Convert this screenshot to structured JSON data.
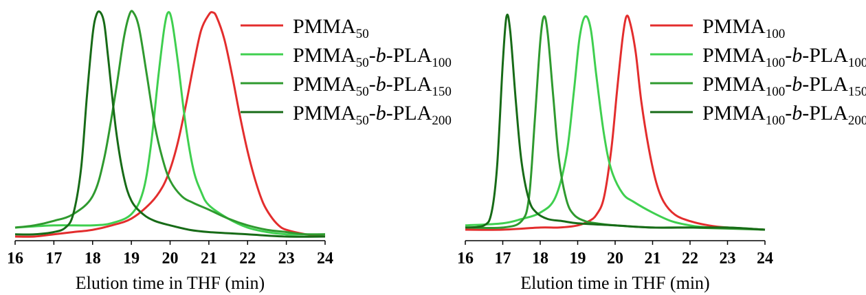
{
  "chart_data": [
    {
      "type": "line",
      "xlabel": "Elution time in THF (min)",
      "ylabel": "",
      "xlim": [
        16,
        24
      ],
      "ylim": [
        0,
        1
      ],
      "x_ticks": [
        "16",
        "17",
        "18",
        "19",
        "20",
        "21",
        "22",
        "23",
        "24"
      ],
      "grid": false,
      "legend_position": "top-right",
      "series": [
        {
          "name": "PMMA50",
          "name_parts": [
            [
              "PMMA",
              ""
            ],
            [
              "50",
              "sub"
            ]
          ],
          "color": "#e32d2d",
          "x": [
            16.0,
            16.5,
            17.0,
            17.5,
            18.0,
            18.5,
            19.0,
            19.5,
            19.8,
            20.0,
            20.2,
            20.4,
            20.6,
            20.8,
            21.0,
            21.1,
            21.2,
            21.4,
            21.6,
            21.8,
            22.0,
            22.2,
            22.4,
            22.6,
            22.8,
            23.0,
            23.5,
            24.0
          ],
          "y": [
            0.0,
            0.0,
            0.01,
            0.02,
            0.03,
            0.05,
            0.08,
            0.15,
            0.22,
            0.3,
            0.42,
            0.58,
            0.76,
            0.92,
            0.99,
            1.0,
            0.98,
            0.88,
            0.72,
            0.54,
            0.38,
            0.25,
            0.15,
            0.09,
            0.05,
            0.03,
            0.01,
            0.0
          ]
        },
        {
          "name": "PMMA50-b-PLA100",
          "name_parts": [
            [
              "PMMA",
              ""
            ],
            [
              "50",
              "sub"
            ],
            [
              "-",
              ""
            ],
            [
              "b",
              "ital"
            ],
            [
              "-PLA",
              ""
            ],
            [
              "100",
              "sub"
            ]
          ],
          "color": "#3fcf4f",
          "x": [
            16.0,
            17.0,
            18.0,
            18.5,
            19.0,
            19.3,
            19.5,
            19.7,
            19.85,
            19.95,
            20.05,
            20.2,
            20.4,
            20.6,
            20.8,
            21.0,
            21.5,
            22.0,
            22.5,
            23.0,
            23.5,
            24.0
          ],
          "y": [
            0.04,
            0.05,
            0.05,
            0.06,
            0.1,
            0.2,
            0.4,
            0.72,
            0.93,
            1.0,
            0.96,
            0.78,
            0.5,
            0.3,
            0.2,
            0.14,
            0.08,
            0.04,
            0.02,
            0.01,
            0.01,
            0.01
          ]
        },
        {
          "name": "PMMA50-b-PLA150",
          "name_parts": [
            [
              "PMMA",
              ""
            ],
            [
              "50",
              "sub"
            ],
            [
              "-",
              ""
            ],
            [
              "b",
              "ital"
            ],
            [
              "-PLA",
              ""
            ],
            [
              "150",
              "sub"
            ]
          ],
          "color": "#2f9a2f",
          "x": [
            16.0,
            16.5,
            17.0,
            17.5,
            18.0,
            18.3,
            18.6,
            18.8,
            18.95,
            19.05,
            19.2,
            19.4,
            19.6,
            19.8,
            20.0,
            20.3,
            20.6,
            21.0,
            21.5,
            22.0,
            22.5,
            23.0,
            23.5,
            24.0
          ],
          "y": [
            0.04,
            0.05,
            0.07,
            0.1,
            0.18,
            0.35,
            0.65,
            0.88,
            0.99,
            1.0,
            0.93,
            0.72,
            0.5,
            0.35,
            0.25,
            0.18,
            0.15,
            0.12,
            0.08,
            0.05,
            0.03,
            0.02,
            0.01,
            0.01
          ]
        },
        {
          "name": "PMMA50-b-PLA200",
          "name_parts": [
            [
              "PMMA",
              ""
            ],
            [
              "50",
              "sub"
            ],
            [
              "-",
              ""
            ],
            [
              "b",
              "ital"
            ],
            [
              "-PLA",
              ""
            ],
            [
              "200",
              "sub"
            ]
          ],
          "color": "#176b17",
          "x": [
            16.0,
            16.5,
            17.0,
            17.3,
            17.5,
            17.7,
            17.85,
            18.0,
            18.1,
            18.2,
            18.3,
            18.4,
            18.6,
            18.8,
            19.0,
            19.3,
            19.6,
            20.0,
            20.5,
            21.0,
            22.0,
            23.0,
            24.0
          ],
          "y": [
            0.01,
            0.01,
            0.02,
            0.04,
            0.1,
            0.3,
            0.62,
            0.9,
            0.99,
            1.0,
            0.95,
            0.8,
            0.48,
            0.27,
            0.16,
            0.1,
            0.07,
            0.05,
            0.03,
            0.02,
            0.01,
            0.0,
            0.0
          ]
        }
      ]
    },
    {
      "type": "line",
      "xlabel": "Elution time in THF (min)",
      "ylabel": "",
      "xlim": [
        16,
        24
      ],
      "ylim": [
        0,
        1
      ],
      "x_ticks": [
        "16",
        "17",
        "18",
        "19",
        "20",
        "21",
        "22",
        "23",
        "24"
      ],
      "grid": false,
      "legend_position": "top-right",
      "series": [
        {
          "name": "PMMA100",
          "name_parts": [
            [
              "PMMA",
              ""
            ],
            [
              "100",
              "sub"
            ]
          ],
          "color": "#e32d2d",
          "x": [
            16.0,
            17.0,
            18.0,
            18.5,
            19.0,
            19.3,
            19.5,
            19.7,
            19.9,
            20.05,
            20.2,
            20.3,
            20.4,
            20.55,
            20.7,
            20.9,
            21.1,
            21.3,
            21.6,
            22.0,
            22.5,
            23.0,
            24.0
          ],
          "y": [
            0.0,
            0.0,
            0.01,
            0.01,
            0.02,
            0.04,
            0.07,
            0.15,
            0.38,
            0.65,
            0.9,
            1.0,
            0.97,
            0.83,
            0.6,
            0.38,
            0.22,
            0.13,
            0.07,
            0.04,
            0.02,
            0.01,
            0.0
          ]
        },
        {
          "name": "PMMA100-b-PLA100",
          "name_parts": [
            [
              "PMMA",
              ""
            ],
            [
              "100",
              "sub"
            ],
            [
              "-",
              ""
            ],
            [
              "b",
              "ital"
            ],
            [
              "-PLA",
              ""
            ],
            [
              "100",
              "sub"
            ]
          ],
          "color": "#3fcf4f",
          "x": [
            16.0,
            17.0,
            17.5,
            18.0,
            18.4,
            18.7,
            18.9,
            19.05,
            19.2,
            19.35,
            19.5,
            19.7,
            19.9,
            20.2,
            20.5,
            21.0,
            21.5,
            22.0,
            22.5,
            23.0,
            24.0
          ],
          "y": [
            0.02,
            0.03,
            0.05,
            0.08,
            0.15,
            0.35,
            0.65,
            0.9,
            1.0,
            0.94,
            0.72,
            0.45,
            0.28,
            0.17,
            0.13,
            0.08,
            0.04,
            0.02,
            0.01,
            0.01,
            0.0
          ]
        },
        {
          "name": "PMMA100-b-PLA150",
          "name_parts": [
            [
              "PMMA",
              ""
            ],
            [
              "100",
              "sub"
            ],
            [
              "-",
              ""
            ],
            [
              "b",
              "ital"
            ],
            [
              "-PLA",
              ""
            ],
            [
              "150",
              "sub"
            ]
          ],
          "color": "#2f9a2f",
          "x": [
            16.0,
            17.0,
            17.5,
            17.7,
            17.85,
            18.0,
            18.1,
            18.2,
            18.35,
            18.5,
            18.7,
            18.9,
            19.2,
            19.5,
            20.0,
            21.0,
            22.0,
            24.0
          ],
          "y": [
            0.01,
            0.01,
            0.04,
            0.15,
            0.5,
            0.88,
            1.0,
            0.92,
            0.62,
            0.33,
            0.14,
            0.07,
            0.04,
            0.03,
            0.02,
            0.01,
            0.01,
            0.0
          ]
        },
        {
          "name": "PMMA100-b-PLA200",
          "name_parts": [
            [
              "PMMA",
              ""
            ],
            [
              "100",
              "sub"
            ],
            [
              "-",
              ""
            ],
            [
              "b",
              "ital"
            ],
            [
              "-PLA",
              ""
            ],
            [
              "200",
              "sub"
            ]
          ],
          "color": "#176b17",
          "x": [
            16.0,
            16.5,
            16.7,
            16.85,
            17.0,
            17.1,
            17.2,
            17.35,
            17.5,
            17.7,
            17.9,
            18.2,
            18.6,
            19.0,
            20.0,
            21.0,
            22.0,
            23.0,
            24.0
          ],
          "y": [
            0.01,
            0.02,
            0.08,
            0.3,
            0.78,
            1.0,
            0.93,
            0.6,
            0.32,
            0.14,
            0.08,
            0.05,
            0.04,
            0.03,
            0.02,
            0.01,
            0.01,
            0.01,
            0.0
          ]
        }
      ]
    }
  ]
}
